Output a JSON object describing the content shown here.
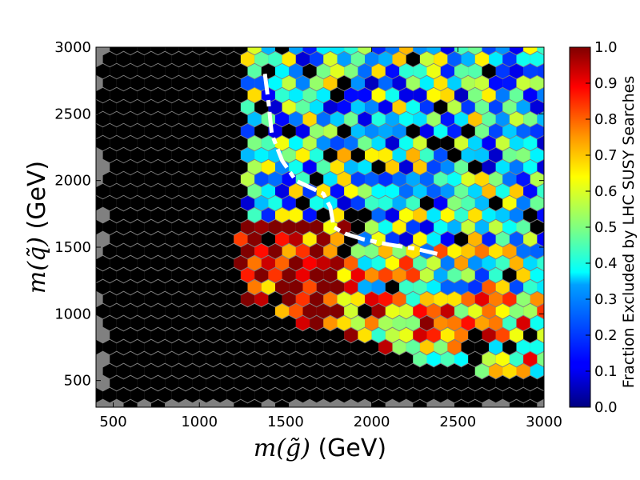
{
  "chart_data": {
    "type": "heatmap",
    "title": "",
    "xlabel": {
      "math": "m(g̃)",
      "unit": " (GeV)"
    },
    "ylabel": {
      "math": "m(q̃)",
      "unit": " (GeV)"
    },
    "xlim": [
      400,
      3000
    ],
    "ylim": [
      300,
      3000
    ],
    "x_ticks": [
      500,
      1000,
      1500,
      2000,
      2500,
      3000
    ],
    "x_tick_labels": [
      "500",
      "1000",
      "1500",
      "2000",
      "2500",
      "3000"
    ],
    "y_ticks": [
      500,
      1000,
      1500,
      2000,
      2500,
      3000
    ],
    "y_tick_labels": [
      "500",
      "1000",
      "1500",
      "2000",
      "2500",
      "3000"
    ],
    "colorbar": {
      "label": "Fraction Excluded by LHC SUSY Searches",
      "range": [
        0.0,
        1.0
      ],
      "ticks": [
        0.0,
        0.1,
        0.2,
        0.3,
        0.4,
        0.5,
        0.6,
        0.7,
        0.8,
        0.9,
        1.0
      ],
      "tick_labels": [
        "0.0",
        "0.1",
        "0.2",
        "0.3",
        "0.4",
        "0.5",
        "0.6",
        "0.7",
        "0.8",
        "0.9",
        "1.0"
      ],
      "colormap": "jet"
    },
    "empty_bin_color": "#808080",
    "binning": {
      "type": "hexagonal",
      "x_step": 80,
      "y_step": 90
    },
    "grid": false,
    "exclusion_line": {
      "style": "white dashed",
      "x": [
        1380,
        1400,
        1420,
        1480,
        1560,
        1640,
        1720,
        1760,
        1780,
        1850,
        1950,
        2100,
        2250,
        2380
      ],
      "y": [
        2800,
        2600,
        2350,
        2150,
        2000,
        1950,
        1900,
        1800,
        1650,
        1600,
        1560,
        1520,
        1490,
        1450
      ]
    }
  }
}
